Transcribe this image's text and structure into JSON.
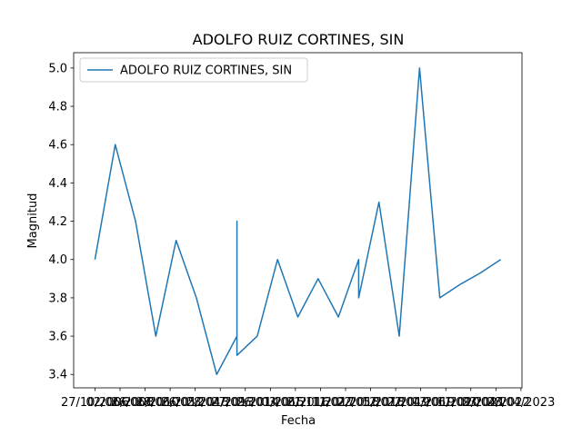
{
  "chart_data": {
    "type": "line",
    "title": "ADOLFO RUIZ CORTINES, SIN",
    "xlabel": "Fecha",
    "ylabel": "Magnitud",
    "ylim": [
      3.33,
      5.08
    ],
    "yticks": [
      "3.4",
      "3.6",
      "3.8",
      "4.0",
      "4.2",
      "4.4",
      "4.6",
      "4.8",
      "5.0"
    ],
    "ytick_values": [
      3.4,
      3.6,
      3.8,
      4.0,
      4.2,
      4.4,
      4.6,
      4.8,
      5.0
    ],
    "xticks": [
      "27/10/2006",
      "02/06/2008",
      "26/06/2010",
      "28/06/2012",
      "26/05/2013",
      "28/04/2013",
      "27/09/2014",
      "26/01/2015",
      "03/06/2016",
      "21/11/2017",
      "11/02/2018",
      "22/05/2018",
      "12/07/2019",
      "22/04/2019",
      "13/06/2020",
      "11/09/2021",
      "23/04/2022",
      "28/04/2023"
    ],
    "series": [
      {
        "name": "ADOLFO RUIZ CORTINES, SIN",
        "color": "#1f77b4",
        "x": [
          0,
          1,
          2,
          3,
          4,
          5,
          6,
          7,
          7,
          7,
          7,
          8,
          9,
          10,
          11,
          12,
          13,
          13,
          14,
          15,
          16,
          17,
          18,
          19,
          20
        ],
        "values": [
          4.0,
          4.6,
          4.2,
          3.6,
          4.1,
          3.8,
          3.4,
          3.6,
          4.2,
          3.6,
          3.5,
          3.6,
          4.0,
          3.7,
          3.9,
          3.7,
          4.0,
          3.8,
          4.3,
          3.6,
          5.0,
          3.8,
          3.87,
          3.93,
          4.0
        ]
      }
    ],
    "legend_position": "top-left",
    "grid": false
  }
}
